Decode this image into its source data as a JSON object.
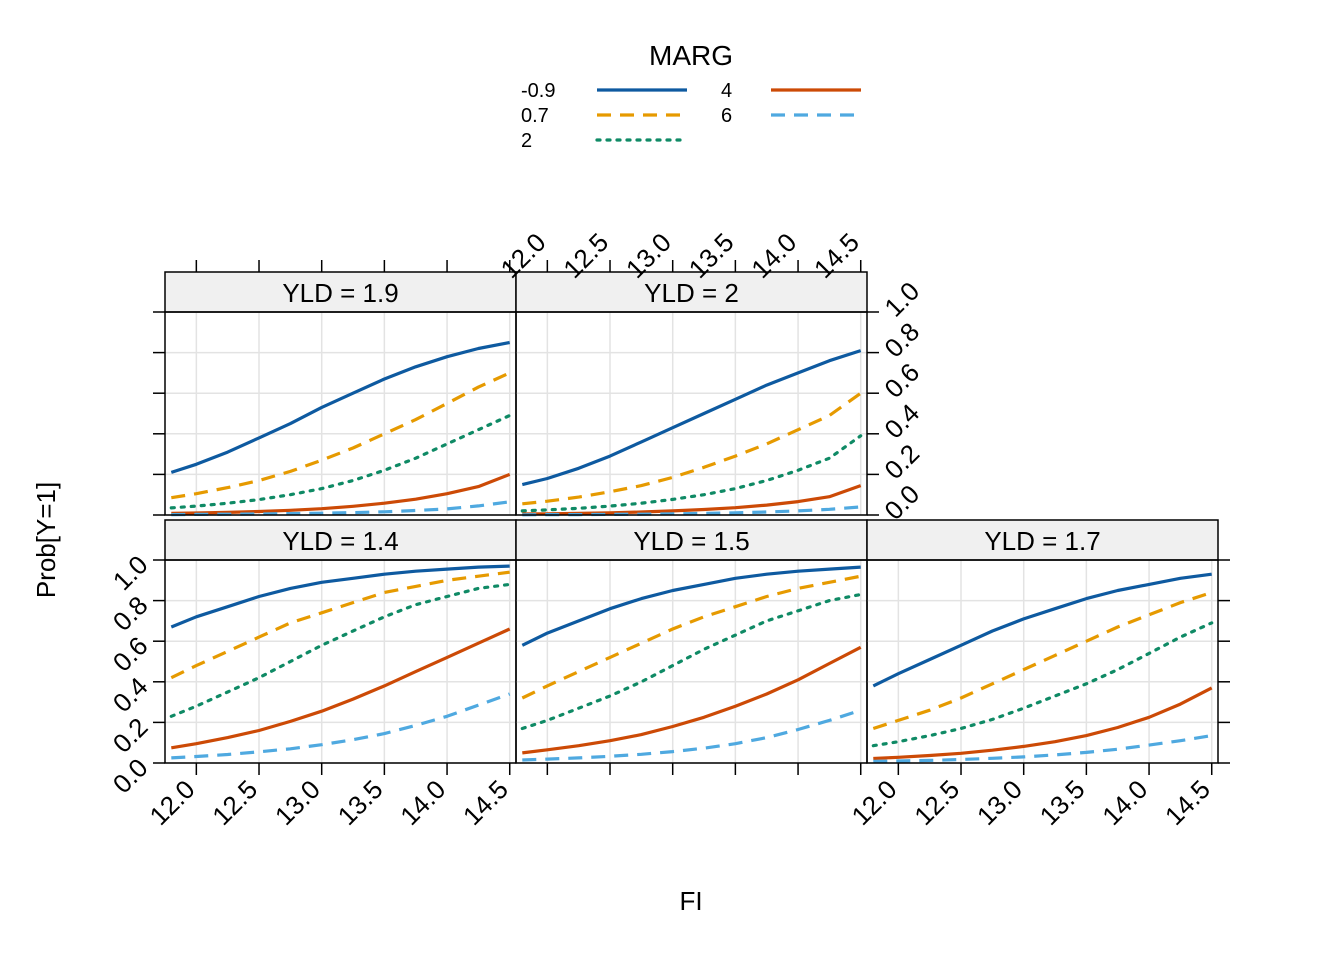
{
  "chart_data": {
    "type": "line",
    "title": "",
    "xlabel": "FI",
    "ylabel": "Prob[Y=1]",
    "xlim": [
      11.75,
      14.55
    ],
    "ylim": [
      0.0,
      1.0
    ],
    "x_ticks": [
      "12.0",
      "12.5",
      "13.0",
      "13.5",
      "14.0",
      "14.5"
    ],
    "y_ticks": [
      "0.0",
      "0.2",
      "0.4",
      "0.6",
      "0.8",
      "1.0"
    ],
    "grid": true,
    "legend": {
      "title": "MARG",
      "placement": "top",
      "entries": [
        {
          "label": "-0.9",
          "color": "#0e5aa0",
          "dash": "solid"
        },
        {
          "label": "0.7",
          "color": "#e69a00",
          "dash": "dashed"
        },
        {
          "label": "2",
          "color": "#0f8a65",
          "dash": "dotted"
        },
        {
          "label": "4",
          "color": "#cc4a06",
          "dash": "solid"
        },
        {
          "label": "6",
          "color": "#4fa9e0",
          "dash": "dashed"
        }
      ]
    },
    "x": [
      11.8,
      12.0,
      12.25,
      12.5,
      12.75,
      13.0,
      13.25,
      13.5,
      13.75,
      14.0,
      14.25,
      14.5
    ],
    "panels": [
      {
        "strip": "YLD = 1.4",
        "series": [
          {
            "name": "-0.9",
            "values": [
              0.67,
              0.72,
              0.77,
              0.82,
              0.86,
              0.89,
              0.91,
              0.93,
              0.945,
              0.955,
              0.965,
              0.97
            ]
          },
          {
            "name": "0.7",
            "values": [
              0.42,
              0.48,
              0.55,
              0.62,
              0.69,
              0.74,
              0.79,
              0.84,
              0.87,
              0.9,
              0.92,
              0.94
            ]
          },
          {
            "name": "2",
            "values": [
              0.23,
              0.28,
              0.35,
              0.42,
              0.5,
              0.58,
              0.65,
              0.72,
              0.78,
              0.82,
              0.86,
              0.88
            ]
          },
          {
            "name": "4",
            "values": [
              0.075,
              0.095,
              0.125,
              0.16,
              0.205,
              0.255,
              0.315,
              0.38,
              0.45,
              0.52,
              0.59,
              0.66
            ]
          },
          {
            "name": "6",
            "values": [
              0.025,
              0.032,
              0.042,
              0.055,
              0.07,
              0.09,
              0.115,
              0.145,
              0.185,
              0.23,
              0.285,
              0.34
            ]
          }
        ]
      },
      {
        "strip": "YLD = 1.5",
        "series": [
          {
            "name": "-0.9",
            "values": [
              0.58,
              0.64,
              0.7,
              0.76,
              0.81,
              0.85,
              0.88,
              0.91,
              0.93,
              0.945,
              0.955,
              0.965
            ]
          },
          {
            "name": "0.7",
            "values": [
              0.32,
              0.38,
              0.45,
              0.52,
              0.59,
              0.66,
              0.72,
              0.77,
              0.82,
              0.86,
              0.89,
              0.92
            ]
          },
          {
            "name": "2",
            "values": [
              0.17,
              0.21,
              0.27,
              0.33,
              0.4,
              0.48,
              0.56,
              0.63,
              0.7,
              0.75,
              0.8,
              0.83
            ]
          },
          {
            "name": "4",
            "values": [
              0.05,
              0.065,
              0.085,
              0.11,
              0.14,
              0.18,
              0.225,
              0.28,
              0.34,
              0.41,
              0.49,
              0.57
            ]
          },
          {
            "name": "6",
            "values": [
              0.015,
              0.019,
              0.025,
              0.033,
              0.043,
              0.056,
              0.073,
              0.095,
              0.125,
              0.165,
              0.21,
              0.26
            ]
          }
        ]
      },
      {
        "strip": "YLD = 1.7",
        "series": [
          {
            "name": "-0.9",
            "values": [
              0.38,
              0.44,
              0.51,
              0.58,
              0.65,
              0.71,
              0.76,
              0.81,
              0.85,
              0.88,
              0.91,
              0.93
            ]
          },
          {
            "name": "0.7",
            "values": [
              0.17,
              0.21,
              0.26,
              0.32,
              0.39,
              0.46,
              0.53,
              0.6,
              0.67,
              0.73,
              0.79,
              0.84
            ]
          },
          {
            "name": "2",
            "values": [
              0.085,
              0.105,
              0.135,
              0.17,
              0.215,
              0.27,
              0.33,
              0.39,
              0.46,
              0.54,
              0.62,
              0.69
            ]
          },
          {
            "name": "4",
            "values": [
              0.022,
              0.028,
              0.037,
              0.048,
              0.063,
              0.082,
              0.105,
              0.135,
              0.175,
              0.225,
              0.29,
              0.37
            ]
          },
          {
            "name": "6",
            "values": [
              0.008,
              0.01,
              0.013,
              0.017,
              0.023,
              0.03,
              0.04,
              0.052,
              0.068,
              0.088,
              0.11,
              0.135
            ]
          }
        ]
      },
      {
        "strip": "YLD = 1.9",
        "series": [
          {
            "name": "-0.9",
            "values": [
              0.21,
              0.25,
              0.31,
              0.38,
              0.45,
              0.53,
              0.6,
              0.67,
              0.73,
              0.78,
              0.82,
              0.85
            ]
          },
          {
            "name": "0.7",
            "values": [
              0.085,
              0.105,
              0.135,
              0.17,
              0.215,
              0.27,
              0.33,
              0.4,
              0.47,
              0.55,
              0.63,
              0.7
            ]
          },
          {
            "name": "2",
            "values": [
              0.035,
              0.044,
              0.058,
              0.076,
              0.1,
              0.13,
              0.17,
              0.22,
              0.28,
              0.35,
              0.42,
              0.49
            ]
          },
          {
            "name": "4",
            "values": [
              0.008,
              0.01,
              0.013,
              0.017,
              0.023,
              0.031,
              0.043,
              0.058,
              0.078,
              0.105,
              0.14,
              0.2
            ]
          },
          {
            "name": "6",
            "values": [
              0.002,
              0.003,
              0.004,
              0.005,
              0.007,
              0.009,
              0.012,
              0.016,
              0.022,
              0.03,
              0.045,
              0.065
            ]
          }
        ]
      },
      {
        "strip": "YLD = 2",
        "series": [
          {
            "name": "-0.9",
            "values": [
              0.15,
              0.18,
              0.23,
              0.29,
              0.36,
              0.43,
              0.5,
              0.57,
              0.64,
              0.7,
              0.76,
              0.81
            ]
          },
          {
            "name": "0.7",
            "values": [
              0.055,
              0.068,
              0.088,
              0.115,
              0.145,
              0.185,
              0.235,
              0.29,
              0.35,
              0.42,
              0.49,
              0.6
            ]
          },
          {
            "name": "2",
            "values": [
              0.02,
              0.025,
              0.033,
              0.044,
              0.058,
              0.077,
              0.1,
              0.13,
              0.17,
              0.22,
              0.28,
              0.39
            ]
          },
          {
            "name": "4",
            "values": [
              0.005,
              0.006,
              0.008,
              0.011,
              0.015,
              0.02,
              0.027,
              0.036,
              0.049,
              0.066,
              0.09,
              0.145
            ]
          },
          {
            "name": "6",
            "values": [
              0.001,
              0.002,
              0.002,
              0.003,
              0.004,
              0.006,
              0.008,
              0.011,
              0.015,
              0.02,
              0.028,
              0.04
            ]
          }
        ]
      }
    ]
  }
}
